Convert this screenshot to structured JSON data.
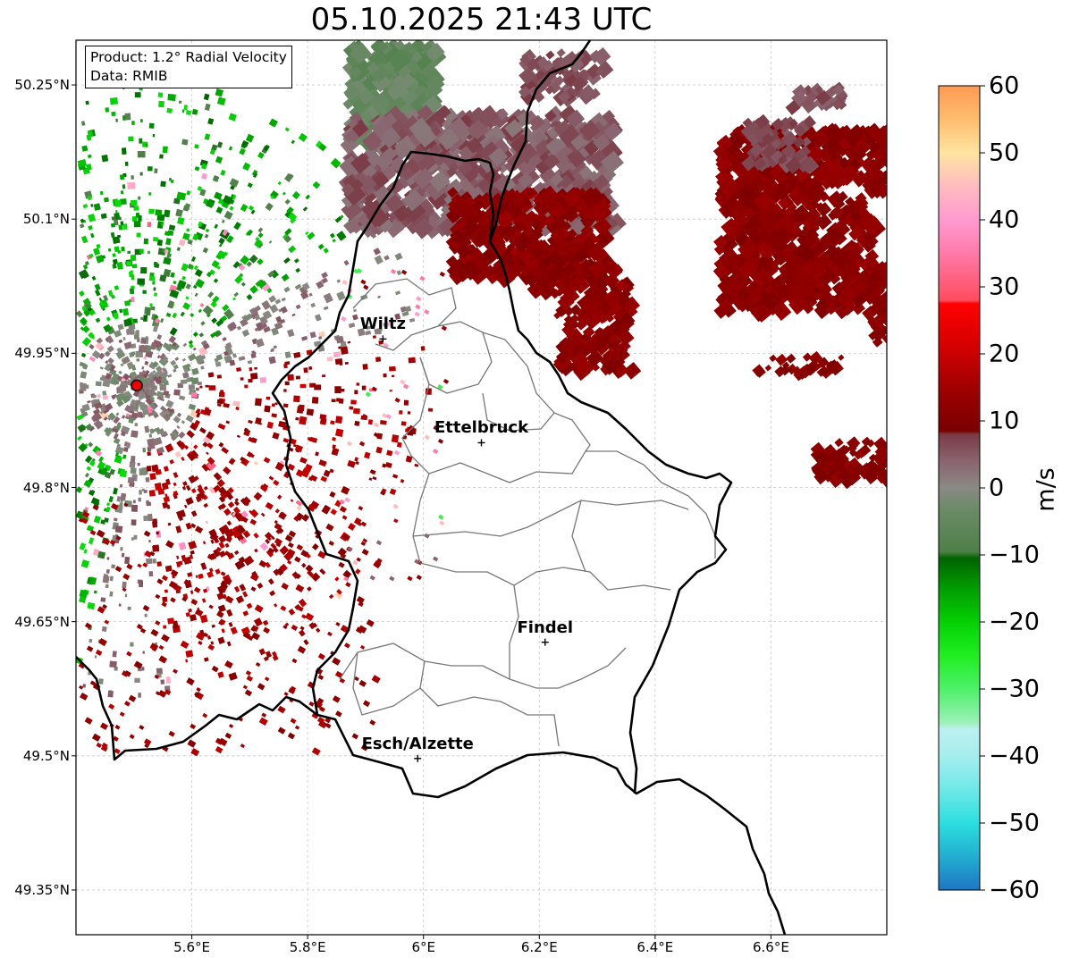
{
  "title": "05.10.2025 21:43 UTC",
  "info": {
    "product": "Product: 1.2° Radial Velocity",
    "source": "Data: RMIB"
  },
  "cities": [
    {
      "name": "Wiltz",
      "lon": 5.93,
      "lat": 49.966
    },
    {
      "name": "Ettelbruck",
      "lon": 6.1,
      "lat": 49.85
    },
    {
      "name": "Findel",
      "lon": 6.21,
      "lat": 49.627
    },
    {
      "name": "Esch/Alzette",
      "lon": 5.99,
      "lat": 49.497
    }
  ],
  "radar_site": {
    "lon": 5.505,
    "lat": 49.914
  },
  "axes": {
    "lon_range": [
      5.4,
      6.8
    ],
    "lat_range": [
      49.3,
      50.3
    ],
    "x_ticks": [
      {
        "value": 5.6,
        "label": "5.6°E"
      },
      {
        "value": 5.8,
        "label": "5.8°E"
      },
      {
        "value": 6.0,
        "label": "6°E"
      },
      {
        "value": 6.2,
        "label": "6.2°E"
      },
      {
        "value": 6.4,
        "label": "6.4°E"
      },
      {
        "value": 6.6,
        "label": "6.6°E"
      }
    ],
    "y_ticks": [
      {
        "value": 50.25,
        "label": "50.25°N"
      },
      {
        "value": 50.1,
        "label": "50.1°N"
      },
      {
        "value": 49.95,
        "label": "49.95°N"
      },
      {
        "value": 49.8,
        "label": "49.8°N"
      },
      {
        "value": 49.65,
        "label": "49.65°N"
      },
      {
        "value": 49.5,
        "label": "49.5°N"
      },
      {
        "value": 49.35,
        "label": "49.35°N"
      }
    ]
  },
  "colorbar": {
    "unit": "m/s",
    "range": [
      -60,
      60
    ],
    "ticks": [
      {
        "value": 60,
        "label": "60"
      },
      {
        "value": 50,
        "label": "50"
      },
      {
        "value": 40,
        "label": "40"
      },
      {
        "value": 30,
        "label": "30"
      },
      {
        "value": 20,
        "label": "20"
      },
      {
        "value": 10,
        "label": "10"
      },
      {
        "value": 0,
        "label": "0"
      },
      {
        "value": -10,
        "label": "−10"
      },
      {
        "value": -20,
        "label": "−20"
      },
      {
        "value": -30,
        "label": "−30"
      },
      {
        "value": -40,
        "label": "−40"
      },
      {
        "value": -50,
        "label": "−50"
      },
      {
        "value": -60,
        "label": "−60"
      }
    ],
    "stops": [
      {
        "value": -60,
        "color": "#1f77c4"
      },
      {
        "value": -55,
        "color": "#22aed0"
      },
      {
        "value": -50,
        "color": "#2cdede"
      },
      {
        "value": -45,
        "color": "#6fe8e8"
      },
      {
        "value": -40,
        "color": "#a6eeee"
      },
      {
        "value": -36,
        "color": "#bdf0f0"
      },
      {
        "value": -35,
        "color": "#9cf0b8"
      },
      {
        "value": -30,
        "color": "#4ef06a"
      },
      {
        "value": -25,
        "color": "#20ee20"
      },
      {
        "value": -20,
        "color": "#04d004"
      },
      {
        "value": -15,
        "color": "#029c02"
      },
      {
        "value": -10.5,
        "color": "#006400"
      },
      {
        "value": -9.5,
        "color": "#4e8048"
      },
      {
        "value": -3,
        "color": "#6d8a68"
      },
      {
        "value": 0,
        "color": "#8a8a84"
      },
      {
        "value": 4,
        "color": "#8a6470"
      },
      {
        "value": 8,
        "color": "#7a3a44"
      },
      {
        "value": 8.5,
        "color": "#7a0000"
      },
      {
        "value": 15,
        "color": "#a00000"
      },
      {
        "value": 21,
        "color": "#d40000"
      },
      {
        "value": 27.5,
        "color": "#ff0000"
      },
      {
        "value": 28,
        "color": "#ff4d60"
      },
      {
        "value": 35,
        "color": "#ff7aa8"
      },
      {
        "value": 40,
        "color": "#ff9ad0"
      },
      {
        "value": 45,
        "color": "#ffbcc0"
      },
      {
        "value": 50,
        "color": "#ffe4a0"
      },
      {
        "value": 55,
        "color": "#ffbd6e"
      },
      {
        "value": 60,
        "color": "#ff9a54"
      }
    ]
  }
}
